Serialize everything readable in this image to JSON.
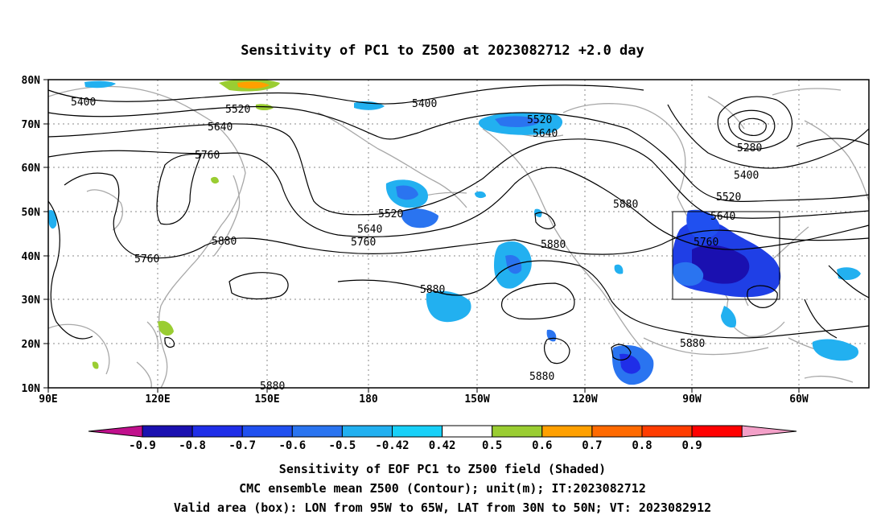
{
  "title": "Sensitivity of PC1 to Z500 at 2023082712 +2.0 day",
  "map": {
    "lat_labels": [
      "80N",
      "70N",
      "60N",
      "50N",
      "40N",
      "30N",
      "20N",
      "10N"
    ],
    "lon_labels": [
      "90E",
      "120E",
      "150E",
      "180",
      "150W",
      "120W",
      "90W",
      "60W"
    ],
    "contour_labels": [
      "5400",
      "5520",
      "5640",
      "5760",
      "5400",
      "5520",
      "5640",
      "5280",
      "5400",
      "5520",
      "5640",
      "5760",
      "5760",
      "5880",
      "5880",
      "5880",
      "5760",
      "5640",
      "5520",
      "5880",
      "5880",
      "5880",
      "5880"
    ],
    "box": {
      "lon_from": "95W",
      "lon_to": "65W",
      "lat_from": "30N",
      "lat_to": "50N"
    }
  },
  "colorbar": {
    "labels": [
      "-0.9",
      "-0.8",
      "-0.7",
      "-0.6",
      "-0.5",
      "-0.42",
      "0.42",
      "0.5",
      "0.6",
      "0.7",
      "0.8",
      "0.9"
    ],
    "colors": [
      "#1a10b0",
      "#1f2ee8",
      "#2050f0",
      "#2a74f0",
      "#22b0f0",
      "#18d0f8",
      "#ffffff",
      "#9acd32",
      "#ffa000",
      "#ff6a00",
      "#ff3c00",
      "#ff0000"
    ],
    "end_low": "#c0108c",
    "end_high": "#f3a0c8"
  },
  "captions": {
    "line1": "Sensitivity of EOF PC1 to Z500 field (Shaded)",
    "line2": "CMC ensemble mean Z500 (Contour); unit(m); IT:2023082712",
    "line3": "Valid area (box): LON from 95W to 65W, LAT from 30N to 50N; VT: 2023082912"
  }
}
